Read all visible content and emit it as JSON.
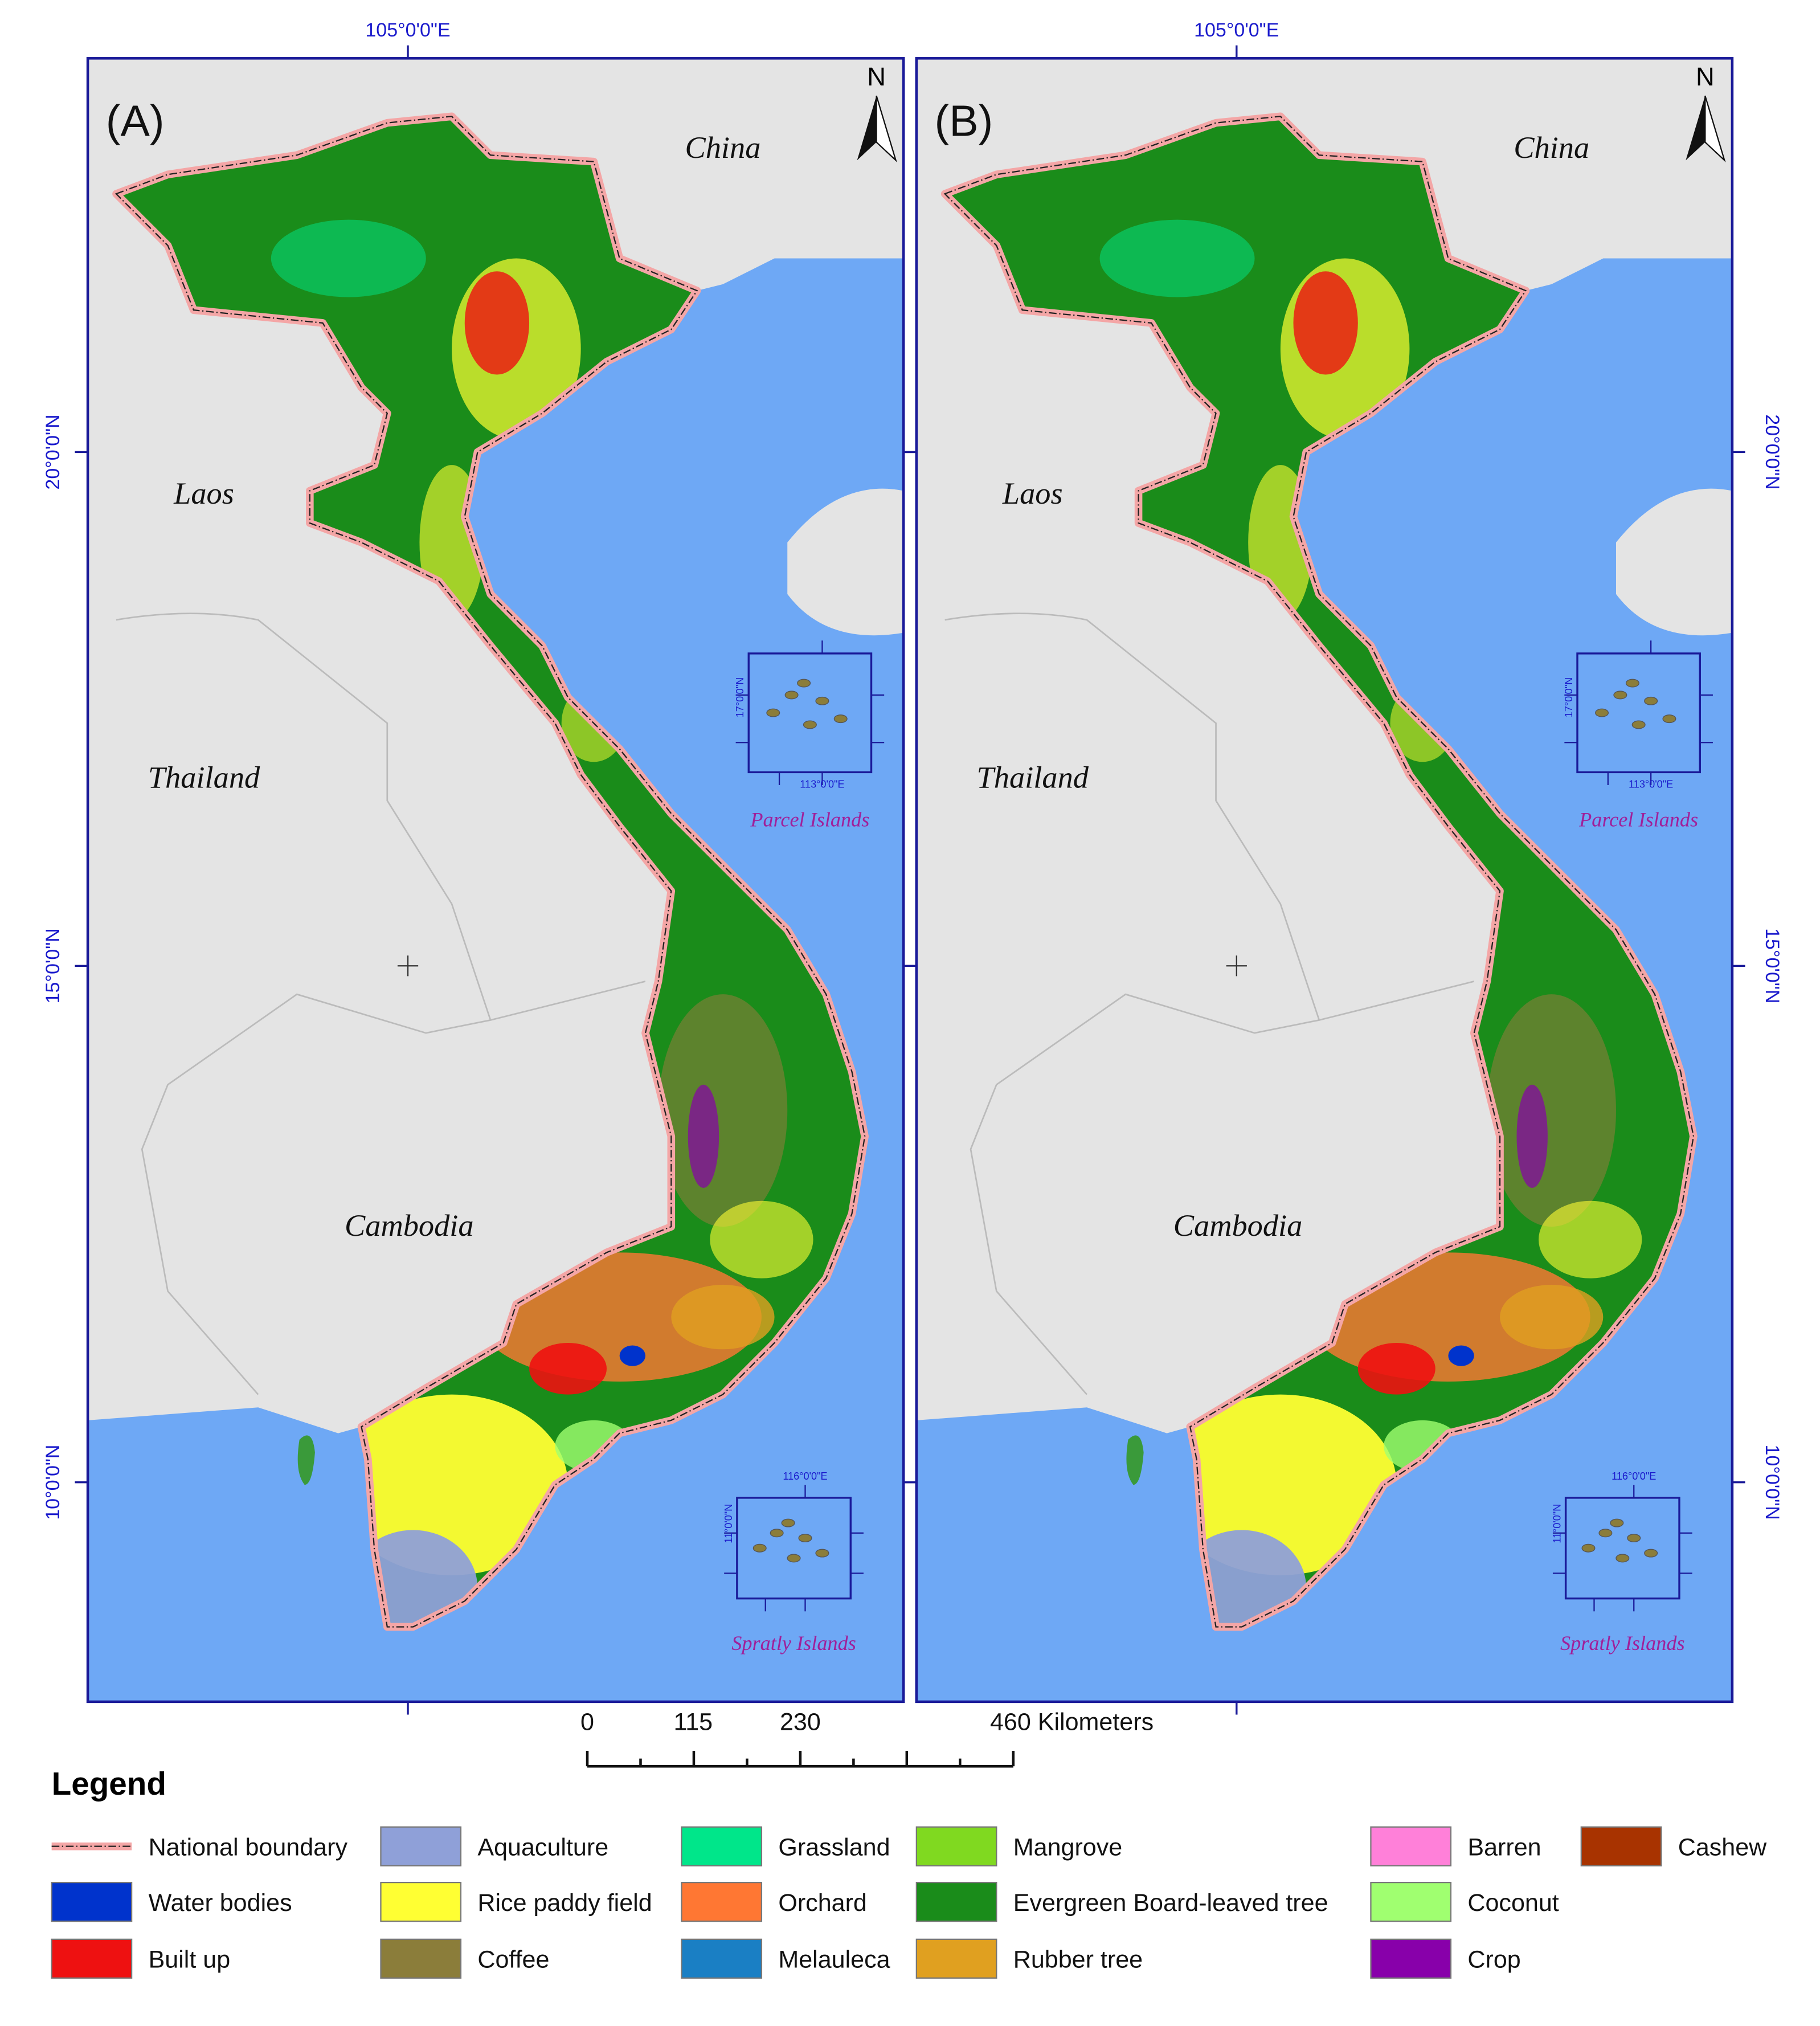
{
  "panels": [
    {
      "label": "(A)",
      "north": "N",
      "lon": "105°0'0\"E",
      "lats": [
        "20°0'0\"N",
        "15°0'0\"N",
        "10°0'0\"N"
      ],
      "countries": [
        "China",
        "Laos",
        "Thailand",
        "Cambodia"
      ],
      "parcel": {
        "lat": "17°0'0\"N",
        "lon": "113°0'0\"E",
        "name": "Parcel Islands"
      },
      "spratly": {
        "lat": "11°0'0\"N",
        "lon": "116°0'0\"E",
        "name": "Spratly Islands"
      }
    },
    {
      "label": "(B)",
      "north": "N",
      "lon": "105°0'0\"E",
      "lats": [
        "20°0'0\"N",
        "15°0'0\"N",
        "10°0'0\"N"
      ],
      "countries": [
        "China",
        "Laos",
        "Thailand",
        "Cambodia"
      ],
      "parcel": {
        "lat": "17°0'0\"N",
        "lon": "113°0'0\"E",
        "name": "Parcel Islands"
      },
      "spratly": {
        "lat": "11°0'0\"N",
        "lon": "116°0'0\"E",
        "name": "Spratly Islands"
      }
    }
  ],
  "scale": {
    "ticks": [
      "0",
      "115",
      "230",
      "460 Kilometers"
    ]
  },
  "legend": {
    "title": "Legend",
    "items": [
      {
        "name": "National boundary",
        "color": "#f4a6a6",
        "symbol": "line"
      },
      {
        "name": "Water bodies",
        "color": "#0033cc"
      },
      {
        "name": "Built up",
        "color": "#ee1111"
      },
      {
        "name": "Aquaculture",
        "color": "#8fa0d8"
      },
      {
        "name": "Rice paddy field",
        "color": "#ffff33"
      },
      {
        "name": "Coffee",
        "color": "#8b7d3a"
      },
      {
        "name": "Grassland",
        "color": "#00e68a"
      },
      {
        "name": "Orchard",
        "color": "#ff7733"
      },
      {
        "name": "Melauleca",
        "color": "#1a7fc4"
      },
      {
        "name": "Mangrove",
        "color": "#80d920"
      },
      {
        "name": "Evergreen Board-leaved tree",
        "color": "#1a8c1a"
      },
      {
        "name": "Rubber tree",
        "color": "#e0a020"
      },
      {
        "name": "Barren",
        "color": "#ff80d9"
      },
      {
        "name": "Coconut",
        "color": "#a0ff70"
      },
      {
        "name": "Crop",
        "color": "#8800aa"
      },
      {
        "name": "Cashew",
        "color": "#a83300"
      }
    ]
  }
}
